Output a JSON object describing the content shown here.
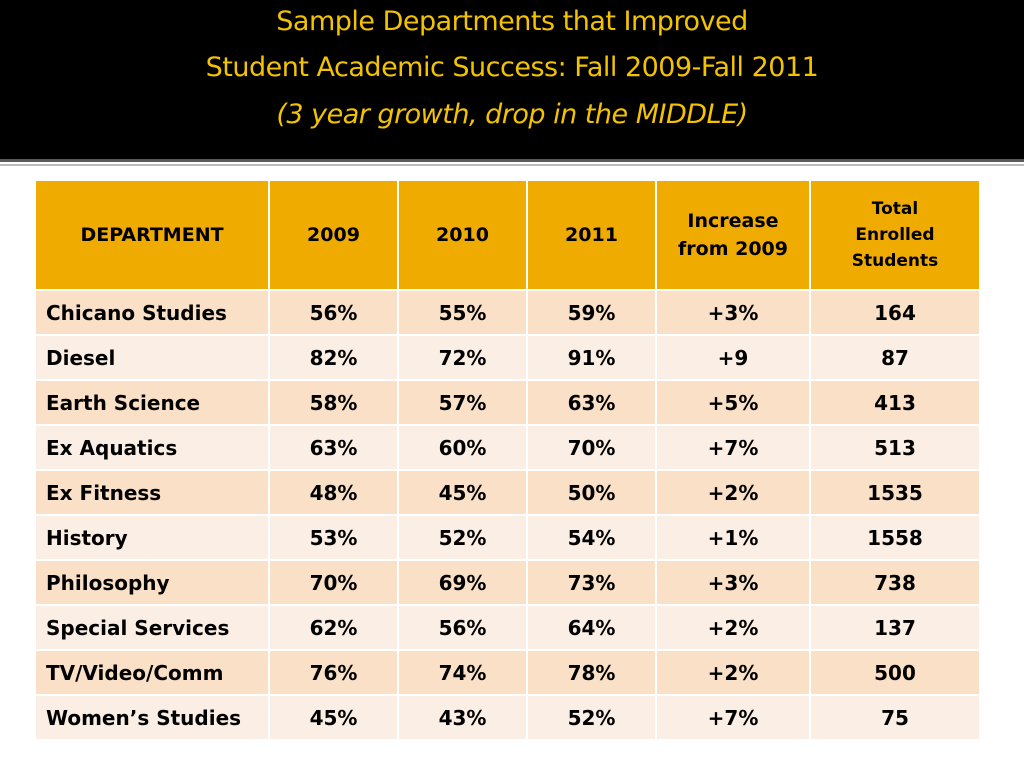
{
  "slide": {
    "title_lines": [
      "Sample Departments that Improved",
      "Student Academic Success: Fall 2009-Fall 2011",
      "(3 year growth, drop in the MIDDLE)"
    ],
    "colors": {
      "title_text": "#f3c300",
      "title_background": "#000000",
      "header_background": "#efab00",
      "row_odd": "#f9e0c6",
      "row_even": "#fbeee4"
    }
  },
  "table": {
    "headers": [
      "DEPARTMENT",
      "2009",
      "2010",
      "2011",
      "Increase from 2009",
      "Total Enrolled Students"
    ],
    "rows": [
      [
        "Chicano Studies",
        "56%",
        "55%",
        "59%",
        "+3%",
        "164"
      ],
      [
        "Diesel",
        "82%",
        "72%",
        "91%",
        "+9",
        "87"
      ],
      [
        "Earth Science",
        "58%",
        "57%",
        "63%",
        "+5%",
        "413"
      ],
      [
        "Ex Aquatics",
        "63%",
        "60%",
        "70%",
        "+7%",
        "513"
      ],
      [
        "Ex Fitness",
        "48%",
        "45%",
        "50%",
        "+2%",
        "1535"
      ],
      [
        "History",
        "53%",
        "52%",
        "54%",
        "+1%",
        "1558"
      ],
      [
        "Philosophy",
        "70%",
        "69%",
        "73%",
        "+3%",
        "738"
      ],
      [
        "Special Services",
        "62%",
        "56%",
        "64%",
        "+2%",
        "137"
      ],
      [
        "TV/Video/Comm",
        "76%",
        "74%",
        "78%",
        "+2%",
        "500"
      ],
      [
        "Women’s Studies",
        "45%",
        "43%",
        "52%",
        "+7%",
        "75"
      ]
    ]
  }
}
